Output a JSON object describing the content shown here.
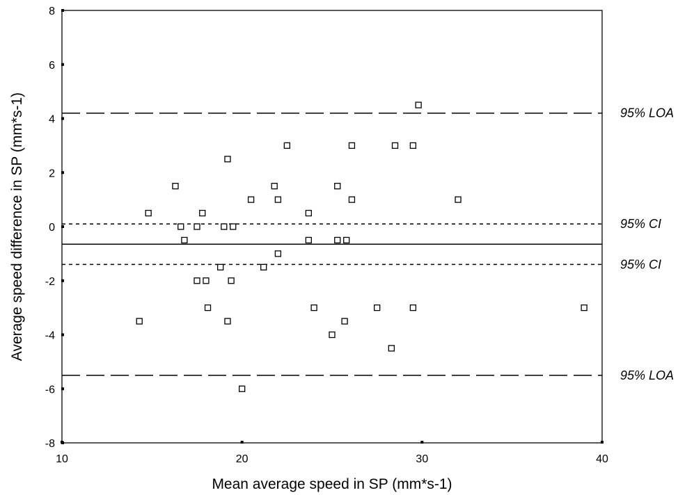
{
  "chart_data": {
    "type": "scatter",
    "title": "",
    "xlabel": "Mean average speed in SP (mm*s-1)",
    "ylabel": "Average speed difference in SP (mm*s-1)",
    "xlim": [
      10,
      40
    ],
    "ylim": [
      -8,
      8
    ],
    "x_ticks": [
      "10",
      "20",
      "30",
      "40"
    ],
    "y_ticks": [
      "-8",
      "-6",
      "-4",
      "-2",
      "0",
      "2",
      "4",
      "6",
      "8"
    ],
    "grid": false,
    "points": [
      {
        "x": 14.3,
        "y": -3.5
      },
      {
        "x": 14.8,
        "y": 0.5
      },
      {
        "x": 16.3,
        "y": 1.5
      },
      {
        "x": 16.6,
        "y": 0.0
      },
      {
        "x": 16.8,
        "y": -0.5
      },
      {
        "x": 17.5,
        "y": -2.0
      },
      {
        "x": 17.5,
        "y": 0.0
      },
      {
        "x": 17.8,
        "y": 0.5
      },
      {
        "x": 18.0,
        "y": -2.0
      },
      {
        "x": 18.1,
        "y": -3.0
      },
      {
        "x": 18.8,
        "y": -1.5
      },
      {
        "x": 19.0,
        "y": 0.0
      },
      {
        "x": 19.2,
        "y": -3.5
      },
      {
        "x": 19.2,
        "y": 2.5
      },
      {
        "x": 19.4,
        "y": -2.0
      },
      {
        "x": 19.5,
        "y": 0.0
      },
      {
        "x": 20.0,
        "y": -6.0
      },
      {
        "x": 20.5,
        "y": 1.0
      },
      {
        "x": 21.2,
        "y": -1.5
      },
      {
        "x": 21.8,
        "y": 1.5
      },
      {
        "x": 22.0,
        "y": 1.0
      },
      {
        "x": 22.0,
        "y": -1.0
      },
      {
        "x": 22.5,
        "y": 3.0
      },
      {
        "x": 23.7,
        "y": 0.5
      },
      {
        "x": 23.7,
        "y": -0.5
      },
      {
        "x": 24.0,
        "y": -3.0
      },
      {
        "x": 25.0,
        "y": -4.0
      },
      {
        "x": 25.3,
        "y": 1.5
      },
      {
        "x": 25.3,
        "y": -0.5
      },
      {
        "x": 25.7,
        "y": -3.5
      },
      {
        "x": 25.8,
        "y": -0.5
      },
      {
        "x": 26.1,
        "y": 3.0
      },
      {
        "x": 26.1,
        "y": 1.0
      },
      {
        "x": 27.5,
        "y": -3.0
      },
      {
        "x": 28.3,
        "y": -4.5
      },
      {
        "x": 28.5,
        "y": 3.0
      },
      {
        "x": 29.5,
        "y": 3.0
      },
      {
        "x": 29.5,
        "y": -3.0
      },
      {
        "x": 29.8,
        "y": 4.5
      },
      {
        "x": 32.0,
        "y": 1.0
      },
      {
        "x": 39.0,
        "y": -3.0
      }
    ],
    "reference_lines": [
      {
        "y": 4.2,
        "style": "long-dash",
        "label": "95% LOA"
      },
      {
        "y": 0.1,
        "style": "dotted",
        "label": "95% CI"
      },
      {
        "y": -0.65,
        "style": "solid",
        "label": ""
      },
      {
        "y": -1.4,
        "style": "dotted",
        "label": "95% CI"
      },
      {
        "y": -5.5,
        "style": "long-dash",
        "label": "95% LOA"
      }
    ]
  }
}
